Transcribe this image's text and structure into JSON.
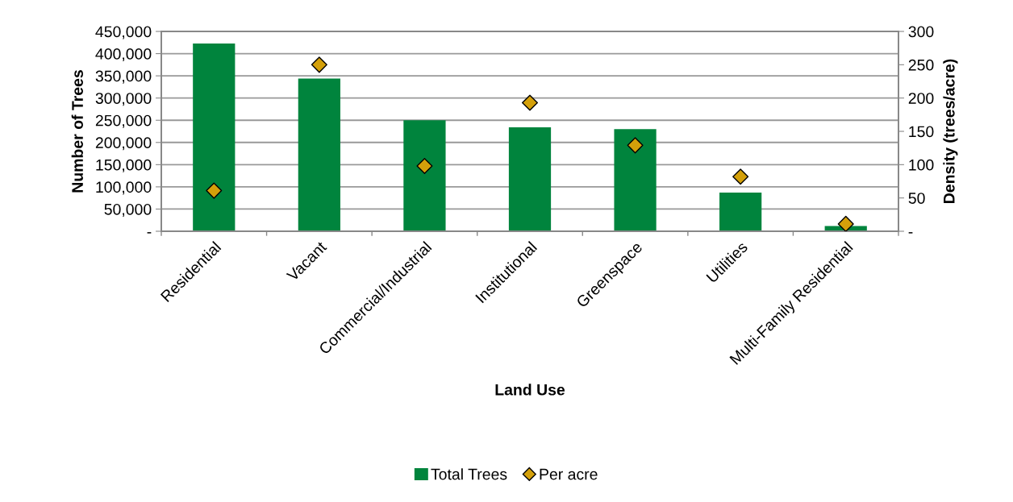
{
  "chart_data": {
    "type": "bar",
    "xlabel": "Land Use",
    "ylabel": "Number of Trees",
    "y2label": "Density (trees/acre)",
    "categories": [
      "Residential",
      "Vacant",
      "Commercial/Industrial",
      "Institutional",
      "Greenspace",
      "Utilities",
      "Multi-Family Residential"
    ],
    "series": [
      {
        "name": "Total Trees",
        "color": "#00843d",
        "values": [
          423000,
          344000,
          250000,
          234000,
          230000,
          87000,
          12000
        ]
      },
      {
        "name": "Per acre",
        "type": "scatter",
        "axis": "y2",
        "color": "#d4a00a",
        "marker": "diamond",
        "values": [
          61,
          250,
          98,
          193,
          129,
          82,
          11
        ]
      }
    ],
    "ylim": [
      0,
      450000
    ],
    "yticks": [
      {
        "value": 0,
        "label": "-"
      },
      {
        "value": 50000,
        "label": "50,000"
      },
      {
        "value": 100000,
        "label": "100,000"
      },
      {
        "value": 150000,
        "label": "150,000"
      },
      {
        "value": 200000,
        "label": "200,000"
      },
      {
        "value": 250000,
        "label": "250,000"
      },
      {
        "value": 300000,
        "label": "300,000"
      },
      {
        "value": 350000,
        "label": "350,000"
      },
      {
        "value": 400000,
        "label": "400,000"
      },
      {
        "value": 450000,
        "label": "450,000"
      }
    ],
    "y2lim": [
      0,
      300
    ],
    "y2ticks": [
      {
        "value": 0,
        "label": "-"
      },
      50,
      100,
      150,
      200,
      250,
      300
    ],
    "grid": "y",
    "legend": "bottom"
  }
}
